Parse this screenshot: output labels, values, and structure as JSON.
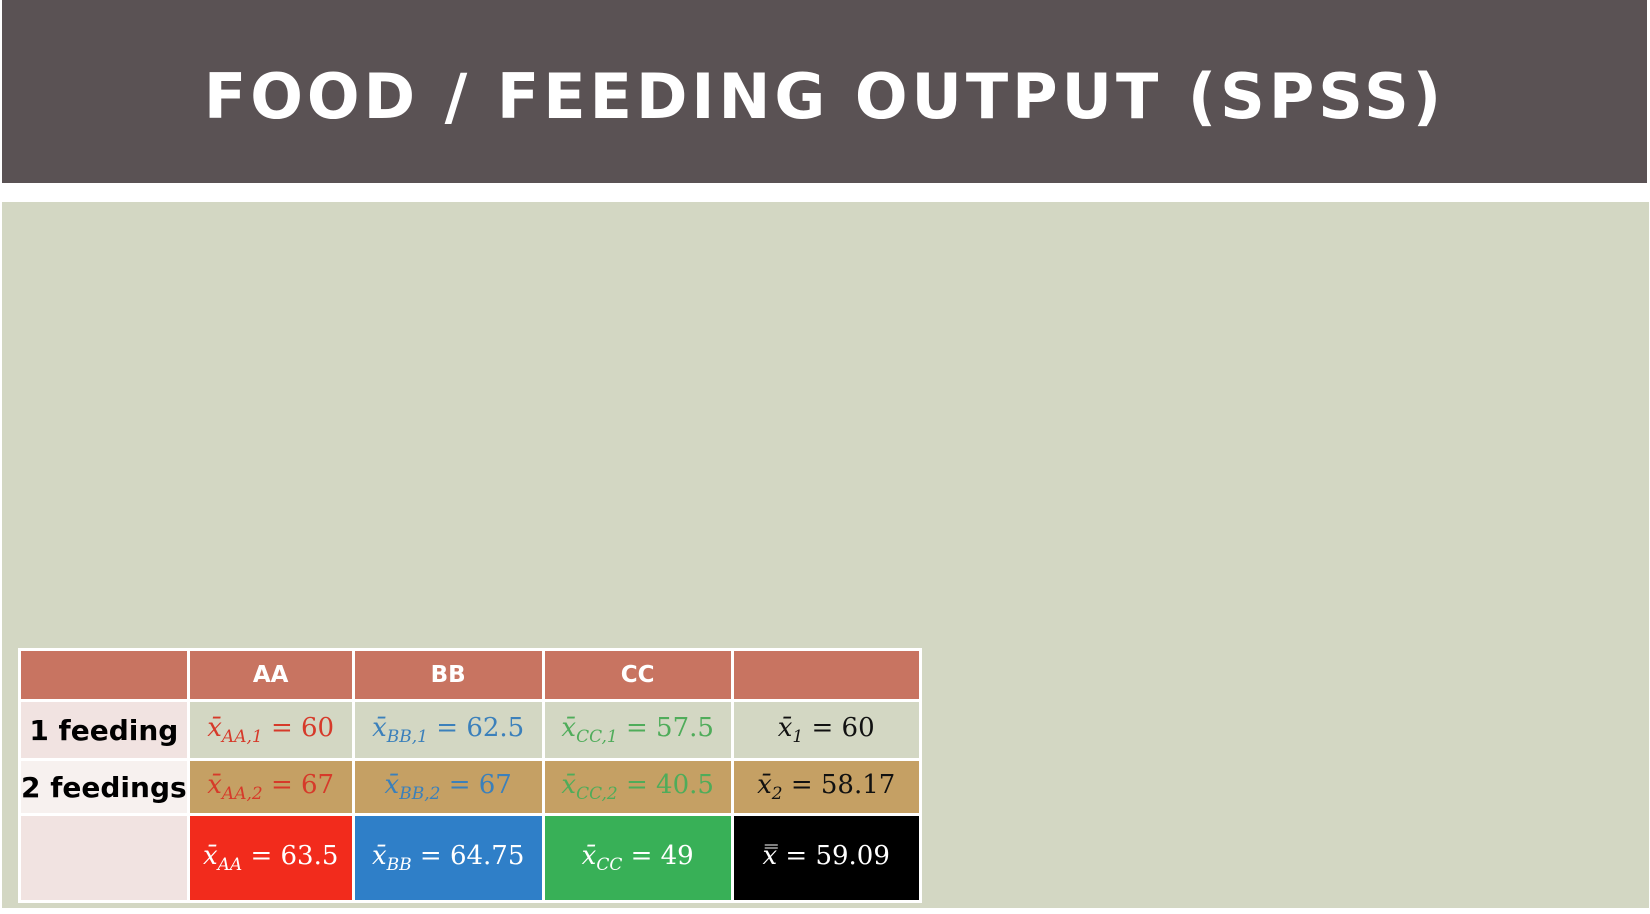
{
  "slide": {
    "title": "FOOD / FEEDING OUTPUT (SPSS)"
  },
  "table": {
    "headers": [
      "",
      "AA",
      "BB",
      "CC",
      ""
    ],
    "rows": [
      {
        "label": "1 feeding",
        "cells": [
          {
            "sym": "x̄",
            "sub": "AA,1",
            "value": "= 60",
            "color": "#d63a2a"
          },
          {
            "sym": "x̄",
            "sub": "BB,1",
            "value": "= 62.5",
            "color": "#3b80bb"
          },
          {
            "sym": "x̄",
            "sub": "CC,1",
            "value": "= 57.5",
            "color": "#4fac5a"
          },
          {
            "sym": "x̄",
            "sub": "1",
            "value": "= 60",
            "color": "#111111"
          }
        ]
      },
      {
        "label": "2 feedings",
        "cells": [
          {
            "sym": "x̄",
            "sub": "AA,2",
            "value": "= 67",
            "color": "#d63a2a"
          },
          {
            "sym": "x̄",
            "sub": "BB,2",
            "value": "= 67",
            "color": "#3b80bb"
          },
          {
            "sym": "x̄",
            "sub": "CC,2",
            "value": "= 40.5",
            "color": "#4fac5a"
          },
          {
            "sym": "x̄",
            "sub": "2",
            "value": "= 58.17",
            "color": "#111111"
          }
        ]
      },
      {
        "label": "",
        "cells": [
          {
            "sym": "x̄",
            "sub": "AA",
            "value": "= 63.5",
            "bg": "#f22b1c"
          },
          {
            "sym": "x̄",
            "sub": "BB",
            "value": "= 64.75",
            "bg": "#2f7fc8"
          },
          {
            "sym": "x̄",
            "sub": "CC",
            "value": "= 49",
            "bg": "#38b057"
          },
          {
            "sym": "x̿",
            "sub": "",
            "value": "= 59.09",
            "bg": "#000000"
          }
        ]
      }
    ]
  }
}
